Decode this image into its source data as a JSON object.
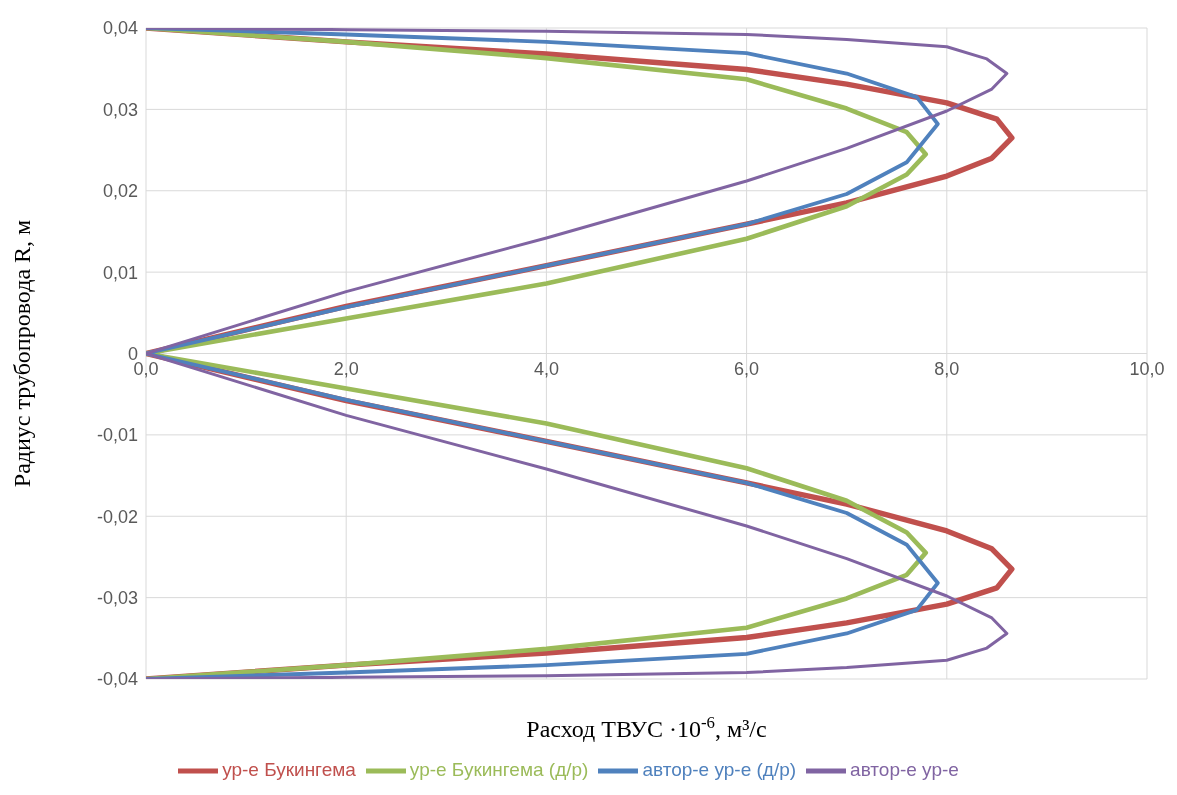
{
  "chart_data": {
    "type": "line",
    "xlabel": "Расход ТВУС ·10$^{-6}$, м³/с",
    "ylabel": "Радиус трубопровода R, м",
    "xlim": [
      0,
      10
    ],
    "xticks": [
      {
        "value": 0,
        "label": "0,0"
      },
      {
        "value": 2,
        "label": "2,0"
      },
      {
        "value": 4,
        "label": "4,0"
      },
      {
        "value": 6,
        "label": "6,0"
      },
      {
        "value": 8,
        "label": "8,0"
      },
      {
        "value": 10,
        "label": "10,0"
      }
    ],
    "ylim": [
      -0.04,
      0.04
    ],
    "yticks": [
      {
        "value": -0.04,
        "label": "-0,04"
      },
      {
        "value": -0.03,
        "label": "-0,03"
      },
      {
        "value": -0.02,
        "label": "-0,02"
      },
      {
        "value": -0.01,
        "label": "-0,01"
      },
      0,
      {
        "value": 0.01,
        "label": "0,01"
      },
      {
        "value": 0.02,
        "label": "0,02"
      },
      {
        "value": 0.03,
        "label": "0,03"
      },
      {
        "value": 0.04,
        "label": "0,04"
      }
    ],
    "grid": true,
    "legend": "bottom",
    "marker": "none",
    "line_style": "solid",
    "series": [
      {
        "name": "ур-е Букингема",
        "color": "#c0504d",
        "x": [
          0,
          2,
          4,
          6,
          7,
          8,
          8.5,
          8.65,
          8.45,
          8,
          7,
          6,
          4,
          2,
          0,
          2,
          4,
          6,
          7,
          8,
          8.45,
          8.65,
          8.5,
          8,
          7,
          6,
          4,
          2,
          0
        ],
        "values": [
          -0.04,
          -0.0383,
          -0.0368,
          -0.0349,
          -0.0331,
          -0.0308,
          -0.0288,
          -0.0265,
          -0.024,
          -0.0218,
          -0.0185,
          -0.0159,
          -0.0108,
          -0.0058,
          0,
          0.0058,
          0.0108,
          0.0159,
          0.0185,
          0.0218,
          0.024,
          0.0265,
          0.0288,
          0.0308,
          0.0331,
          0.0349,
          0.0368,
          0.0383,
          0.04
        ]
      },
      {
        "name": "ур-е Букингема (д/р)",
        "color": "#9bbb59",
        "x": [
          0,
          2,
          4,
          6,
          7,
          7.6,
          7.79,
          7.6,
          7,
          6,
          4,
          2,
          0,
          2,
          4,
          6,
          7,
          7.6,
          7.79,
          7.6,
          7,
          6,
          4,
          2,
          0
        ],
        "values": [
          -0.04,
          -0.0383,
          -0.0363,
          -0.0337,
          -0.0301,
          -0.0272,
          -0.0245,
          -0.022,
          -0.0181,
          -0.0141,
          -0.0086,
          -0.0043,
          0,
          0.0043,
          0.0086,
          0.0141,
          0.0181,
          0.022,
          0.0245,
          0.0272,
          0.0301,
          0.0337,
          0.0363,
          0.0383,
          0.04
        ]
      },
      {
        "name": "автор-е ур-е (д/р)",
        "color": "#4f81bd",
        "x": [
          0,
          2,
          4,
          6,
          7,
          7.7,
          7.91,
          7.6,
          7,
          6,
          4,
          2,
          0,
          2,
          4,
          6,
          7,
          7.6,
          7.91,
          7.7,
          7,
          6,
          4,
          2,
          0
        ],
        "values": [
          -0.04,
          -0.0392,
          -0.0383,
          -0.0369,
          -0.0344,
          -0.0315,
          -0.0282,
          -0.0235,
          -0.0196,
          -0.0159,
          -0.0108,
          -0.0057,
          0,
          0.0057,
          0.0108,
          0.0159,
          0.0196,
          0.0235,
          0.0282,
          0.0315,
          0.0344,
          0.0369,
          0.0383,
          0.0392,
          0.04
        ]
      },
      {
        "name": "автор-е ур-е",
        "color": "#8064a2",
        "x": [
          0,
          2,
          4,
          6,
          7,
          8,
          8.4,
          8.6,
          8.45,
          8,
          7,
          6,
          4,
          2,
          0,
          2,
          4,
          6,
          7,
          8,
          8.45,
          8.6,
          8.4,
          8,
          7,
          6,
          4,
          2,
          0
        ],
        "values": [
          -0.04,
          -0.0398,
          -0.0396,
          -0.0392,
          -0.0386,
          -0.0377,
          -0.0362,
          -0.0344,
          -0.0325,
          -0.0298,
          -0.0252,
          -0.0212,
          -0.0142,
          -0.0076,
          0,
          0.0076,
          0.0142,
          0.0212,
          0.0252,
          0.0298,
          0.0325,
          0.0344,
          0.0362,
          0.0377,
          0.0386,
          0.0392,
          0.0396,
          0.0398,
          0.04
        ]
      }
    ]
  }
}
